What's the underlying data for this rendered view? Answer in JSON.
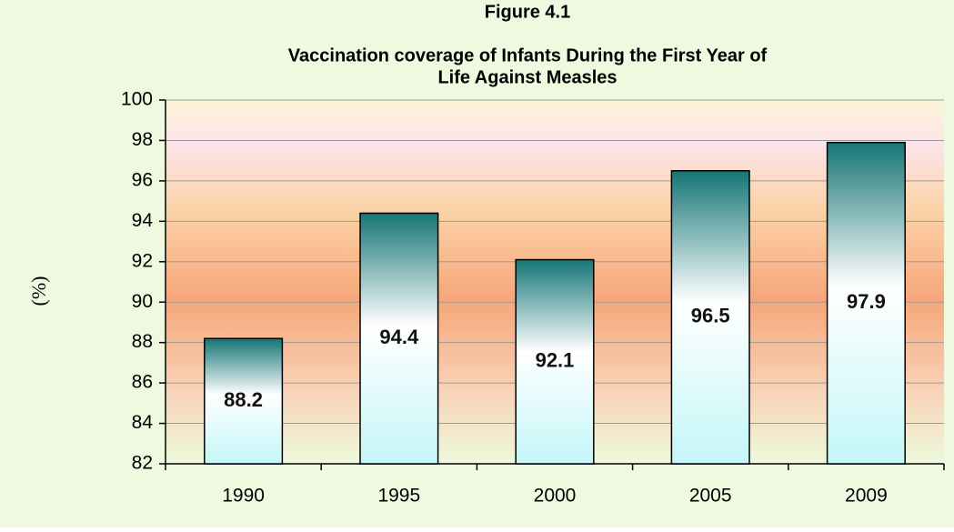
{
  "chart_data": {
    "type": "bar",
    "title": [
      "Figure 4.1",
      "Vaccination coverage of Infants During the First Year of",
      "Life Against Measles"
    ],
    "y_label": "(%)",
    "categories": [
      "1990",
      "1995",
      "2000",
      "2005",
      "2009"
    ],
    "values": [
      88.2,
      94.4,
      92.1,
      96.5,
      97.9
    ],
    "ylim": [
      82,
      100
    ],
    "yticks": [
      82,
      84,
      86,
      88,
      90,
      92,
      94,
      96,
      98,
      100
    ],
    "grid": true,
    "color": "#1a7d7d"
  }
}
